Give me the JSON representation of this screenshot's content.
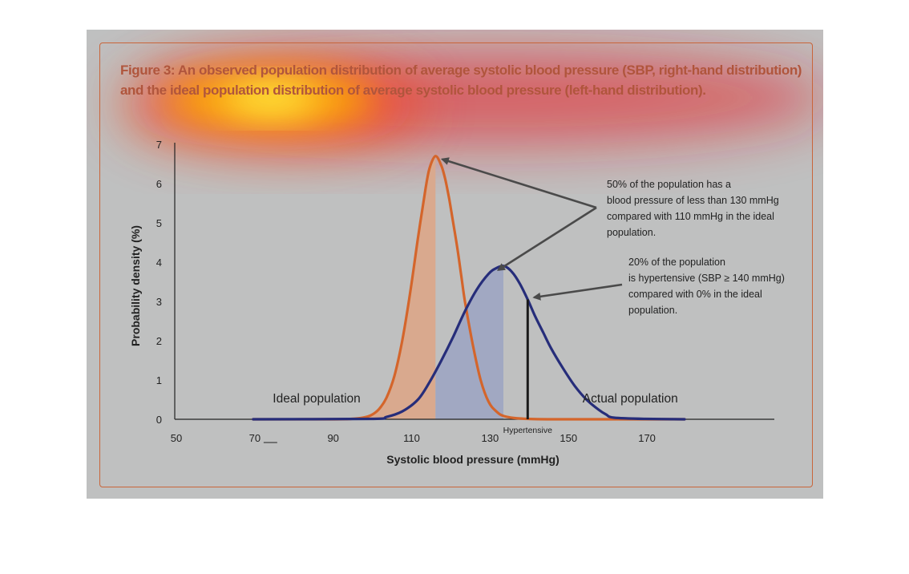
{
  "figure": {
    "title_lines": [
      "Figure 3: An observed population distribution of average systolic blood pressure (SBP, right-hand distribution)",
      "and the ideal population distribution of average systolic blood pressure (left-hand distribution)."
    ]
  },
  "chart_data": {
    "type": "line",
    "xlabel": "Systolic blood pressure (mmHg)",
    "ylabel": "Probability density (%)",
    "xlim": [
      50,
      180
    ],
    "ylim": [
      0,
      7
    ],
    "x_ticks": [
      "50",
      "70",
      "90",
      "110",
      "130",
      "150",
      "170"
    ],
    "y_ticks": [
      "0",
      "1",
      "2",
      "3",
      "4",
      "5",
      "6",
      "7"
    ],
    "grid": false,
    "series": [
      {
        "name": "Ideal population",
        "color": "#d4652b",
        "fill_color": "#d9a98e",
        "fill_upto_x": 116.5,
        "x": [
          70,
          90,
          95,
          98,
          100,
          102,
          104,
          106,
          108,
          110,
          112,
          114,
          115,
          116.5,
          118,
          119,
          120,
          121,
          122,
          123,
          124,
          126,
          128,
          130,
          132,
          134,
          138,
          145,
          160,
          180
        ],
        "y": [
          0,
          0,
          0.01,
          0.04,
          0.1,
          0.25,
          0.55,
          1.1,
          2.0,
          3.2,
          4.6,
          5.9,
          6.4,
          6.7,
          6.45,
          6.1,
          5.6,
          5.0,
          4.4,
          3.7,
          3.0,
          1.9,
          1.0,
          0.45,
          0.2,
          0.08,
          0.02,
          0,
          0,
          0
        ]
      },
      {
        "name": "Actual population",
        "color": "#262d7a",
        "fill_color": "#a1a8c2",
        "fill_from_x": 116.5,
        "fill_to_x": 133.8,
        "x": [
          70,
          100,
          104,
          108,
          112,
          115,
          118,
          121,
          124,
          127,
          130,
          132,
          134,
          136,
          138,
          140,
          142,
          144,
          146,
          149,
          152,
          155,
          158,
          160,
          162,
          170,
          180
        ],
        "y": [
          0,
          0.01,
          0.06,
          0.2,
          0.5,
          0.95,
          1.5,
          2.1,
          2.75,
          3.3,
          3.7,
          3.85,
          3.9,
          3.75,
          3.45,
          3.05,
          2.6,
          2.2,
          1.8,
          1.3,
          0.85,
          0.5,
          0.25,
          0.12,
          0.04,
          0.01,
          0
        ]
      }
    ],
    "labels": {
      "ideal": "Ideal population",
      "actual": "Actual population",
      "hypertensive": "Hypertensive"
    },
    "hypertensive_x": 140,
    "annotations": [
      {
        "lines": [
          "50% of the population has a",
          "blood pressure of less than 130 mmHg",
          "compared with 110 mmHg in the ideal",
          "population."
        ],
        "points_to": [
          {
            "x": 117,
            "y": 6.62
          },
          {
            "x": 132.5,
            "y": 3.8
          }
        ]
      },
      {
        "lines": [
          "20% of the population",
          "is hypertensive (SBP ≥ 140 mmHg)",
          "compared with 0% in the ideal",
          "population."
        ],
        "points_to": [
          {
            "x": 140,
            "y": 3.0
          }
        ]
      }
    ],
    "colors": {
      "arrow": "#4a4a4a",
      "axis": "#222222",
      "frame_border": "#c9653a",
      "title": "#b0553c"
    }
  }
}
